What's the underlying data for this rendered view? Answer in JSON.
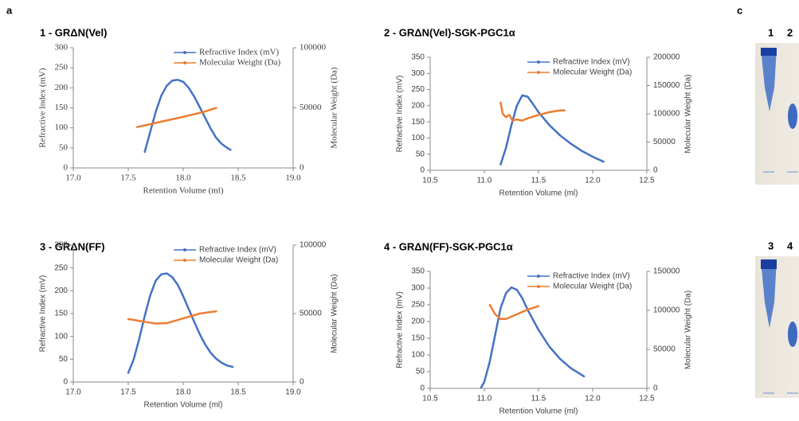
{
  "labels": {
    "panel_a": "a",
    "panel_c": "c",
    "lanes": [
      "1",
      "2",
      "3",
      "4"
    ]
  },
  "chart_data": [
    {
      "type": "line",
      "title": "1 - GRΔN(Vel)",
      "xlabel": "Retention Volume (ml)",
      "ylabel": "Refractive Index (mV)",
      "y2label": "Molecular Weight (Da)",
      "xlim": [
        17,
        19
      ],
      "xticks": [
        {
          "value": 17,
          "label": "17.0"
        },
        {
          "value": 17.5,
          "label": "17.5"
        },
        {
          "value": 18,
          "label": "18.0"
        },
        {
          "value": 18.5,
          "label": "18.5"
        },
        {
          "value": 19,
          "label": "19.0"
        }
      ],
      "ylim": [
        0,
        300
      ],
      "yticks": [
        0,
        50,
        100,
        150,
        200,
        250,
        300
      ],
      "y2lim": [
        0,
        100000
      ],
      "y2ticks": [
        0,
        50000,
        100000
      ],
      "legend": "upper right",
      "series": [
        {
          "name": "Refractive Index (mV)",
          "color": "#4472c4",
          "x": [
            17.65,
            17.7,
            17.75,
            17.8,
            17.85,
            17.9,
            17.95,
            18.0,
            18.05,
            18.1,
            18.15,
            18.2,
            18.25,
            18.3,
            18.35,
            18.4,
            18.43
          ],
          "values": [
            40,
            90,
            140,
            180,
            205,
            218,
            220,
            215,
            200,
            178,
            152,
            125,
            98,
            75,
            60,
            50,
            45
          ]
        },
        {
          "name": "Molecular Weight (Da)",
          "color": "#ed7d31",
          "axis": "y2",
          "x": [
            17.58,
            17.8,
            18.0,
            18.2,
            18.3
          ],
          "values": [
            34000,
            38500,
            42500,
            47000,
            50000
          ]
        }
      ]
    },
    {
      "type": "line",
      "title": "2 - GRΔN(Vel)-SGK-PGC1α",
      "xlabel": "Retention Volume (ml)",
      "ylabel": "Refractive Index (mV)",
      "y2label": "Molecular Weight (Da)",
      "xlim": [
        10.5,
        12.5
      ],
      "xticks": [
        10.5,
        {
          "value": 11,
          "label": "11.0"
        },
        11.5,
        {
          "value": 12,
          "label": "12.0"
        },
        12.5
      ],
      "ylim": [
        0,
        350
      ],
      "yticks": [
        0,
        50,
        100,
        150,
        200,
        250,
        300,
        350
      ],
      "y2lim": [
        0,
        200000
      ],
      "y2ticks": [
        0,
        50000,
        100000,
        150000,
        200000
      ],
      "legend": "upper right",
      "series": [
        {
          "name": "Refractive Index (mV)",
          "color": "#4472c4",
          "x": [
            11.15,
            11.2,
            11.25,
            11.3,
            11.35,
            11.4,
            11.45,
            11.5,
            11.6,
            11.7,
            11.8,
            11.9,
            12.0,
            12.1
          ],
          "values": [
            18,
            70,
            140,
            200,
            232,
            228,
            205,
            180,
            140,
            108,
            82,
            60,
            42,
            27
          ]
        },
        {
          "name": "Molecular Weight (Da)",
          "color": "#ed7d31",
          "axis": "y2",
          "x": [
            11.15,
            11.17,
            11.2,
            11.23,
            11.26,
            11.3,
            11.35,
            11.4,
            11.5,
            11.6,
            11.7,
            11.74
          ],
          "values": [
            120000,
            100000,
            94000,
            98000,
            88000,
            90000,
            88000,
            92000,
            98000,
            103000,
            106000,
            106000
          ]
        }
      ]
    },
    {
      "type": "line",
      "title": "3 - GRΔN(FF)",
      "xlabel": "Retention Volume (ml)",
      "ylabel": "Refractive Index (mV)",
      "y2label": "Molecular Weight (Da)",
      "xlim": [
        17,
        19
      ],
      "xticks": [
        {
          "value": 17,
          "label": "17.0"
        },
        {
          "value": 17.5,
          "label": "17.5"
        },
        {
          "value": 18,
          "label": "18.0"
        },
        {
          "value": 18.5,
          "label": "18.5"
        },
        {
          "value": 19,
          "label": "19.0"
        }
      ],
      "ylim": [
        0,
        300
      ],
      "yticks": [
        0,
        50,
        100,
        150,
        200,
        250,
        300
      ],
      "y2lim": [
        0,
        100000
      ],
      "y2ticks": [
        0,
        50000,
        100000
      ],
      "legend": "upper right",
      "series": [
        {
          "name": "Refractive Index (mV)",
          "color": "#4472c4",
          "x": [
            17.5,
            17.55,
            17.6,
            17.65,
            17.7,
            17.75,
            17.8,
            17.85,
            17.9,
            17.95,
            18.0,
            18.05,
            18.1,
            18.15,
            18.2,
            18.25,
            18.3,
            18.35,
            18.4,
            18.45
          ],
          "values": [
            20,
            50,
            95,
            145,
            190,
            222,
            236,
            238,
            230,
            213,
            188,
            160,
            132,
            105,
            82,
            64,
            51,
            42,
            36,
            33
          ]
        },
        {
          "name": "Molecular Weight (Da)",
          "color": "#ed7d31",
          "axis": "y2",
          "x": [
            17.5,
            17.75,
            17.85,
            18.0,
            18.15,
            18.3
          ],
          "values": [
            46000,
            42700,
            43000,
            46500,
            50000,
            51700
          ]
        }
      ]
    },
    {
      "type": "line",
      "title": "4 - GRΔN(FF)-SGK-PGC1α",
      "xlabel": "Retention Volume (ml)",
      "ylabel": "Refractive Index (mV)",
      "y2label": "Molecular Weight (Da)",
      "xlim": [
        10.5,
        12.5
      ],
      "xticks": [
        10.5,
        {
          "value": 11,
          "label": "11.0"
        },
        11.5,
        {
          "value": 12,
          "label": "12.0"
        },
        12.5
      ],
      "ylim": [
        0,
        350
      ],
      "yticks": [
        0,
        50,
        100,
        150,
        200,
        250,
        300,
        350
      ],
      "y2lim": [
        0,
        150000
      ],
      "y2ticks": [
        0,
        50000,
        100000,
        150000
      ],
      "legend": "upper right",
      "series": [
        {
          "name": "Refractive Index (mV)",
          "color": "#4472c4",
          "x": [
            10.97,
            11.0,
            11.05,
            11.1,
            11.15,
            11.2,
            11.25,
            11.3,
            11.35,
            11.4,
            11.5,
            11.6,
            11.7,
            11.8,
            11.9,
            11.92
          ],
          "values": [
            2,
            20,
            80,
            160,
            240,
            285,
            302,
            295,
            270,
            235,
            175,
            125,
            88,
            60,
            40,
            36
          ]
        },
        {
          "name": "Molecular Weight (Da)",
          "color": "#ed7d31",
          "axis": "y2",
          "x": [
            11.05,
            11.1,
            11.15,
            11.2,
            11.3,
            11.4,
            11.5
          ],
          "values": [
            107000,
            95000,
            89000,
            89000,
            95000,
            101000,
            105400
          ]
        }
      ]
    }
  ]
}
